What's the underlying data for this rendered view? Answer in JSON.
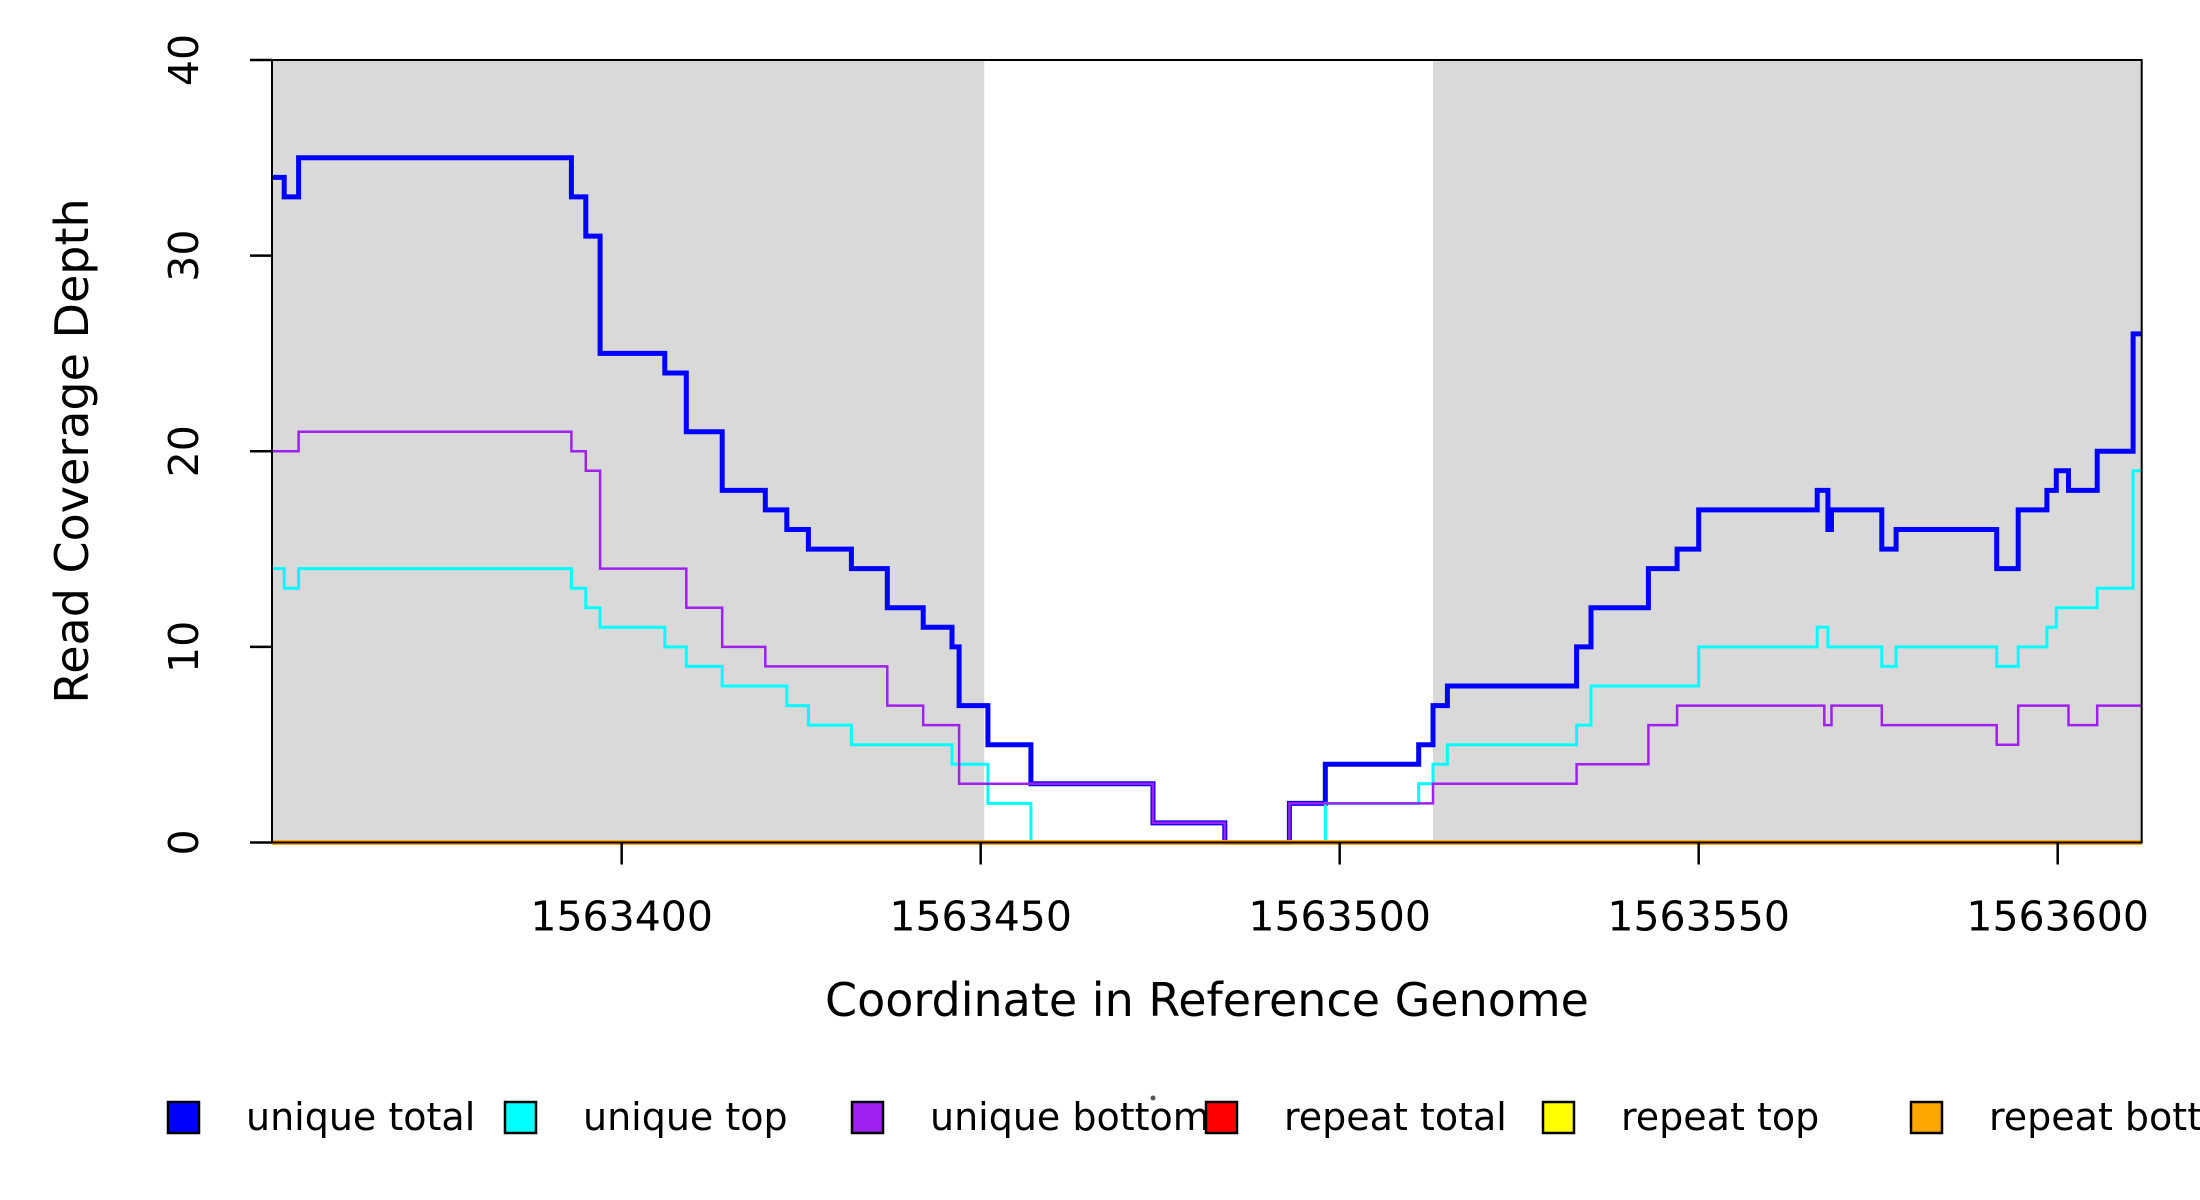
{
  "chart_data": {
    "type": "line",
    "subtype": "step",
    "title": "",
    "xlabel": "Coordinate in Reference Genome",
    "ylabel": "Read Coverage Depth",
    "xlim": [
      1563351.3,
      1563611.7
    ],
    "ylim": [
      0,
      40
    ],
    "x_ticks": [
      1563400,
      1563450,
      1563500,
      1563550,
      1563600
    ],
    "y_ticks": [
      0,
      10,
      20,
      30,
      40
    ],
    "grid": false,
    "background": "#FFFFFF",
    "box_color": "#000000",
    "shade_color": "#D9D9D9",
    "shaded_regions": [
      {
        "x0": 1563351.3,
        "x1": 1563450.5
      },
      {
        "x0": 1563513.0,
        "x1": 1563611.7
      }
    ],
    "series": [
      {
        "name": "unique total",
        "color": "#0000FF",
        "width": 5,
        "points": [
          [
            1563351.3,
            34
          ],
          [
            1563353,
            33
          ],
          [
            1563355,
            35
          ],
          [
            1563393,
            33
          ],
          [
            1563395,
            31
          ],
          [
            1563397,
            25
          ],
          [
            1563406,
            24
          ],
          [
            1563409,
            21
          ],
          [
            1563414,
            18
          ],
          [
            1563420,
            17
          ],
          [
            1563423,
            16
          ],
          [
            1563426,
            15
          ],
          [
            1563432,
            14
          ],
          [
            1563437,
            12
          ],
          [
            1563442,
            11
          ],
          [
            1563446,
            10
          ],
          [
            1563447,
            7
          ],
          [
            1563451,
            5
          ],
          [
            1563457,
            3
          ],
          [
            1563474,
            1
          ],
          [
            1563484,
            0
          ],
          [
            1563493,
            2
          ],
          [
            1563498,
            4
          ],
          [
            1563511,
            5
          ],
          [
            1563513,
            7
          ],
          [
            1563515,
            8
          ],
          [
            1563533,
            10
          ],
          [
            1563535,
            12
          ],
          [
            1563543,
            14
          ],
          [
            1563547,
            15
          ],
          [
            1563550,
            17
          ],
          [
            1563566.5,
            18
          ],
          [
            1563568,
            16
          ],
          [
            1563568.5,
            17
          ],
          [
            1563575.5,
            15
          ],
          [
            1563577.5,
            16
          ],
          [
            1563591.5,
            14
          ],
          [
            1563594.5,
            17
          ],
          [
            1563598.5,
            18
          ],
          [
            1563599.8,
            19
          ],
          [
            1563601.5,
            18
          ],
          [
            1563605.5,
            20
          ],
          [
            1563610.5,
            26
          ]
        ]
      },
      {
        "name": "unique top",
        "color": "#00FFFF",
        "width": 3,
        "points": [
          [
            1563351.3,
            14
          ],
          [
            1563353,
            13
          ],
          [
            1563355,
            14
          ],
          [
            1563393,
            13
          ],
          [
            1563395,
            12
          ],
          [
            1563397,
            11
          ],
          [
            1563406,
            10
          ],
          [
            1563409,
            9
          ],
          [
            1563414,
            8
          ],
          [
            1563423,
            7
          ],
          [
            1563426,
            6
          ],
          [
            1563432,
            5
          ],
          [
            1563446,
            4
          ],
          [
            1563451,
            2
          ],
          [
            1563457,
            0
          ],
          [
            1563498,
            2
          ],
          [
            1563511,
            3
          ],
          [
            1563513,
            4
          ],
          [
            1563515,
            5
          ],
          [
            1563533,
            6
          ],
          [
            1563535,
            8
          ],
          [
            1563550,
            10
          ],
          [
            1563566.5,
            11
          ],
          [
            1563568,
            10
          ],
          [
            1563575.5,
            9
          ],
          [
            1563577.5,
            10
          ],
          [
            1563591.5,
            9
          ],
          [
            1563594.5,
            10
          ],
          [
            1563598.5,
            11
          ],
          [
            1563599.8,
            12
          ],
          [
            1563605.5,
            13
          ],
          [
            1563610.5,
            19
          ]
        ]
      },
      {
        "name": "unique bottom",
        "color": "#A020F0",
        "width": 2.5,
        "points": [
          [
            1563351.3,
            20
          ],
          [
            1563355,
            21
          ],
          [
            1563393,
            20
          ],
          [
            1563395,
            19
          ],
          [
            1563397,
            14
          ],
          [
            1563409,
            12
          ],
          [
            1563414,
            10
          ],
          [
            1563420,
            9
          ],
          [
            1563437,
            7
          ],
          [
            1563442,
            6
          ],
          [
            1563447,
            3
          ],
          [
            1563474,
            1
          ],
          [
            1563484,
            0
          ],
          [
            1563493,
            2
          ],
          [
            1563513,
            3
          ],
          [
            1563533,
            4
          ],
          [
            1563543,
            6
          ],
          [
            1563547,
            7
          ],
          [
            1563567.5,
            6
          ],
          [
            1563568.5,
            7
          ],
          [
            1563575.5,
            6
          ],
          [
            1563591.5,
            5
          ],
          [
            1563594.5,
            7
          ],
          [
            1563601.5,
            6
          ],
          [
            1563605.5,
            7
          ]
        ]
      },
      {
        "name": "repeat total",
        "color": "#FF0000",
        "width": 4.5,
        "points": [
          [
            1563351.3,
            0
          ]
        ]
      },
      {
        "name": "repeat top",
        "color": "#FFFF00",
        "width": 4.5,
        "points": [
          [
            1563351.3,
            0
          ]
        ]
      },
      {
        "name": "repeat bottom",
        "color": "#FFA500",
        "width": 4.5,
        "points": [
          [
            1563351.3,
            0
          ]
        ]
      }
    ],
    "legend": {
      "position": "bottom",
      "entries": [
        {
          "label": "unique total",
          "color": "#0000FF"
        },
        {
          "label": "unique top",
          "color": "#00FFFF"
        },
        {
          "label": "unique bottom",
          "color": "#A020F0"
        },
        {
          "label": "repeat total",
          "color": "#FF0000"
        },
        {
          "label": "repeat top",
          "color": "#FFFF00"
        },
        {
          "label": "repeat bottom",
          "color": "#FFA500"
        }
      ]
    }
  }
}
